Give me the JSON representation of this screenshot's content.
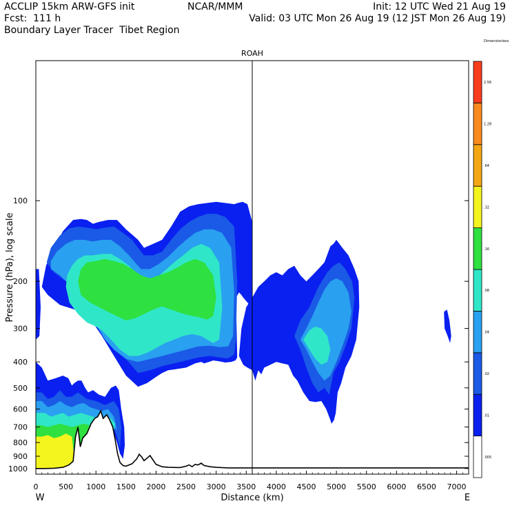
{
  "header": {
    "line1_left": "ACCLIP 15km ARW-GFS init",
    "line1_center": "NCAR/MMM",
    "line1_right": "Init: 12 UTC Wed 21 Aug 19",
    "line2_left": "Fcst:  111 h",
    "line2_right": "Valid: 03 UTC Mon 26 Aug 19 (12 JST Mon 26 Aug 19)",
    "line3_left": "Boundary Layer Tracer  Tibet Region"
  },
  "chart_data": {
    "type": "heatmap",
    "title": "",
    "xlabel": "Distance (km)",
    "ylabel": "Pressure (hPa), log scale",
    "x_ticks": [
      0,
      500,
      1000,
      1500,
      2000,
      2500,
      3000,
      3500,
      4000,
      4500,
      5000,
      5500,
      6000,
      6500,
      7000
    ],
    "y_ticks": [
      100,
      200,
      300,
      400,
      500,
      600,
      700,
      800,
      900,
      1000
    ],
    "xlim": [
      0,
      7200
    ],
    "ylim": [
      1050,
      30
    ],
    "y_scale": "log",
    "x_end_labels": {
      "left": "W",
      "right": "E"
    },
    "marker": {
      "label": "ROAH",
      "x": 3600
    },
    "colorbar": {
      "levels": [
        ".005",
        ".01",
        ".02",
        ".04",
        ".08",
        ".16",
        ".32",
        ".64",
        "1.28",
        "2.56",
        "Dimensionless"
      ],
      "colors": [
        "#ffffff",
        "#0a20f0",
        "#1a5ae6",
        "#2aa0f0",
        "#30e6c8",
        "#2ee040",
        "#f4f41e",
        "#f4a614",
        "#fa8a1e",
        "#fa3c1e"
      ]
    },
    "terrain_profile": {
      "x": [
        0,
        150,
        300,
        450,
        550,
        620,
        660,
        700,
        740,
        780,
        850,
        920,
        980,
        1030,
        1080,
        1120,
        1180,
        1230,
        1280,
        1320,
        1360,
        1400,
        1450,
        1500,
        1600,
        1680,
        1720,
        1760,
        1800,
        1850,
        1900,
        1950,
        2000,
        2100,
        2200,
        2400,
        2500,
        2550,
        2600,
        2650,
        2700,
        2750,
        2800,
        2900,
        3000,
        3200,
        3500,
        4000,
        5000,
        6000,
        7200
      ],
      "p": [
        1000,
        1000,
        998,
        990,
        970,
        940,
        760,
        700,
        830,
        770,
        740,
        680,
        650,
        640,
        610,
        650,
        630,
        660,
        700,
        780,
        880,
        950,
        975,
        980,
        960,
        920,
        885,
        905,
        935,
        915,
        895,
        930,
        965,
        985,
        990,
        992,
        980,
        970,
        985,
        965,
        970,
        955,
        975,
        985,
        990,
        995,
        995,
        995,
        995,
        995,
        995
      ]
    },
    "tracer_regions": [
      {
        "level": 1,
        "x": [
          100,
          200,
          400,
          650,
          900,
          1100,
          1300,
          1500,
          1700,
          1850,
          2000,
          2100,
          2200,
          2350,
          2500,
          2650,
          2750,
          2800,
          2880,
          2950,
          3050,
          3150,
          3250,
          3320,
          3350,
          3330,
          3380,
          3420,
          3450,
          3520,
          3580,
          3600,
          3600,
          3520,
          3440,
          3360,
          3300,
          3150,
          3000,
          2850,
          2700,
          2550,
          2400,
          2250,
          2100,
          1950,
          1800,
          1700,
          1620,
          1500,
          1350,
          1200,
          1050,
          950,
          850,
          750,
          620,
          450,
          300,
          170,
          100
        ],
        "p": [
          210,
          225,
          245,
          255,
          275,
          320,
          380,
          450,
          495,
          480,
          455,
          440,
          430,
          425,
          420,
          405,
          400,
          405,
          400,
          395,
          398,
          402,
          400,
          395,
          385,
          230,
          220,
          225,
          230,
          240,
          250,
          300,
          120,
          103,
          101,
          102,
          103,
          102,
          101,
          102,
          103,
          105,
          110,
          125,
          140,
          145,
          150,
          140,
          135,
          128,
          118,
          118,
          120,
          122,
          118,
          117,
          118,
          130,
          150,
          175,
          210
        ]
      },
      {
        "level": 1,
        "x": [
          3380,
          3450,
          3520,
          3600,
          3650,
          3700,
          3750,
          3800,
          3900,
          4000,
          4100,
          4200,
          4280,
          4350,
          4450,
          4550,
          4650,
          4750,
          4830,
          4890,
          4920,
          4960,
          4990,
          5020,
          5080,
          5150,
          5250,
          5330,
          5380,
          5370,
          5300,
          5200,
          5100,
          5000,
          4950,
          4900,
          4800,
          4700,
          4600,
          4500,
          4400,
          4300,
          4200,
          4100,
          4000,
          3900,
          3800,
          3700,
          3600,
          3500,
          3420,
          3380
        ],
        "p": [
          380,
          410,
          420,
          430,
          470,
          430,
          445,
          420,
          410,
          400,
          405,
          410,
          450,
          470,
          520,
          560,
          565,
          560,
          600,
          650,
          680,
          660,
          620,
          520,
          480,
          420,
          380,
          330,
          250,
          200,
          180,
          160,
          150,
          140,
          145,
          148,
          170,
          180,
          190,
          200,
          190,
          175,
          180,
          190,
          185,
          190,
          200,
          210,
          230,
          250,
          300,
          380
        ]
      },
      {
        "level": 1,
        "x": [
          6790,
          6840,
          6880,
          6910,
          6890,
          6850,
          6800,
          6790
        ],
        "p": [
          260,
          255,
          280,
          320,
          340,
          320,
          300,
          260
        ]
      },
      {
        "level": 1,
        "x": [
          0,
          50,
          80,
          60,
          0
        ],
        "p": [
          180,
          180,
          250,
          320,
          330
        ]
      },
      {
        "level": 1,
        "x": [
          0,
          80,
          150,
          250,
          350,
          450,
          500,
          600,
          700,
          800,
          900,
          950,
          1050,
          1100,
          1150,
          1200,
          1250,
          1300,
          1350,
          1400,
          1450,
          1480,
          1470,
          1420,
          1380,
          1330,
          1250,
          1150,
          1050,
          950,
          870,
          820,
          760,
          700,
          640,
          600,
          540,
          450,
          330,
          200,
          100,
          0
        ],
        "p": [
          1000,
          1000,
          998,
          995,
          990,
          985,
          978,
          965,
          940,
          900,
          820,
          760,
          700,
          670,
          660,
          665,
          690,
          740,
          800,
          880,
          920,
          820,
          700,
          600,
          510,
          490,
          500,
          540,
          530,
          510,
          520,
          500,
          470,
          470,
          480,
          490,
          460,
          450,
          460,
          470,
          420,
          400
        ]
      },
      {
        "level": 2,
        "x": [
          180,
          300,
          500,
          700,
          900,
          1100,
          1300,
          1500,
          1700,
          1900,
          2100,
          2300,
          2500,
          2700,
          2900,
          3050,
          3200,
          3300,
          3330,
          3350,
          3300,
          3150,
          3000,
          2850,
          2700,
          2550,
          2400,
          2250,
          2100,
          1950,
          1800,
          1700,
          1600,
          1450,
          1300,
          1150,
          1000,
          850,
          700,
          550,
          400,
          250,
          180
        ],
        "p": [
          170,
          185,
          200,
          215,
          240,
          275,
          330,
          390,
          440,
          430,
          415,
          405,
          395,
          385,
          380,
          385,
          388,
          375,
          330,
          200,
          125,
          115,
          112,
          112,
          115,
          120,
          128,
          140,
          155,
          160,
          160,
          150,
          140,
          132,
          125,
          126,
          128,
          126,
          125,
          127,
          135,
          150,
          170
        ]
      },
      {
        "level": 2,
        "x": [
          4300,
          4400,
          4500,
          4600,
          4700,
          4800,
          4880,
          4950,
          5050,
          5150,
          5250,
          5300,
          5260,
          5150,
          5050,
          4950,
          4850,
          4700,
          4550,
          4400,
          4300
        ],
        "p": [
          320,
          360,
          420,
          480,
          520,
          500,
          530,
          440,
          400,
          350,
          300,
          230,
          200,
          180,
          170,
          175,
          185,
          210,
          250,
          280,
          320
        ]
      },
      {
        "level": 2,
        "x": [
          0,
          200,
          400,
          500,
          600,
          700,
          800,
          900,
          1000,
          1100,
          1200,
          1300,
          1350,
          1400,
          1420,
          1380,
          1300,
          1150,
          1000,
          850,
          700,
          600,
          500,
          400,
          300,
          200,
          100,
          0
        ],
        "p": [
          990,
          990,
          985,
          975,
          950,
          920,
          870,
          800,
          740,
          700,
          690,
          710,
          760,
          840,
          700,
          600,
          560,
          580,
          560,
          550,
          520,
          540,
          540,
          510,
          540,
          550,
          520,
          520
        ]
      },
      {
        "level": 3,
        "x": [
          250,
          400,
          550,
          700,
          850,
          1000,
          1150,
          1300,
          1500,
          1700,
          1900,
          2100,
          2300,
          2500,
          2700,
          2900,
          3050,
          3200,
          3280,
          3300,
          3250,
          3100,
          2950,
          2800,
          2650,
          2500,
          2350,
          2200,
          2050,
          1900,
          1750,
          1650,
          1550,
          1400,
          1250,
          1100,
          950,
          800,
          650,
          500,
          350,
          250
        ],
        "p": [
          180,
          190,
          205,
          225,
          255,
          290,
          330,
          360,
          390,
          400,
          390,
          380,
          370,
          360,
          350,
          348,
          352,
          350,
          320,
          220,
          150,
          132,
          128,
          128,
          132,
          140,
          150,
          162,
          172,
          180,
          180,
          170,
          160,
          148,
          140,
          140,
          142,
          140,
          140,
          145,
          155,
          168,
          180
        ]
      },
      {
        "level": 3,
        "x": [
          4400,
          4500,
          4600,
          4700,
          4800,
          4900,
          5000,
          5100,
          5200,
          5250,
          5200,
          5100,
          5000,
          4900,
          4800,
          4700,
          4600,
          4500,
          4400
        ],
        "p": [
          330,
          360,
          400,
          440,
          470,
          450,
          400,
          350,
          300,
          260,
          220,
          200,
          195,
          200,
          215,
          240,
          270,
          300,
          330
        ]
      },
      {
        "level": 3,
        "x": [
          0,
          100,
          200,
          300,
          400,
          500,
          600,
          700,
          800,
          900,
          1000,
          1100,
          1200,
          1300,
          1350,
          1300,
          1200,
          1100,
          1000,
          900,
          800,
          700,
          600,
          500,
          400,
          300,
          200,
          100,
          0
        ],
        "p": [
          980,
          980,
          975,
          970,
          960,
          945,
          920,
          880,
          820,
          760,
          710,
          700,
          690,
          700,
          720,
          640,
          600,
          610,
          600,
          590,
          570,
          575,
          590,
          580,
          560,
          580,
          590,
          560,
          560
        ]
      },
      {
        "level": 4,
        "x": [
          1100,
          1250,
          1400,
          1550,
          1700,
          1850,
          2000,
          2150,
          2300,
          2450,
          2600,
          2750,
          2850,
          2950,
          3050,
          3100,
          3050,
          2900,
          2750,
          2600,
          2450,
          2300,
          2150,
          2000,
          1850,
          1700,
          1550,
          1400,
          1250,
          1100,
          950,
          820,
          700,
          600,
          520,
          500,
          560,
          700,
          850,
          1000,
          1100
        ],
        "p": [
          305,
          330,
          360,
          380,
          380,
          370,
          355,
          340,
          330,
          320,
          315,
          320,
          330,
          340,
          330,
          250,
          170,
          150,
          145,
          150,
          160,
          170,
          182,
          195,
          200,
          190,
          175,
          165,
          158,
          158,
          160,
          160,
          165,
          175,
          190,
          210,
          240,
          265,
          285,
          295,
          305
        ]
      },
      {
        "level": 4,
        "x": [
          4450,
          4550,
          4650,
          4750,
          4850,
          4900,
          4850,
          4750,
          4650,
          4550,
          4450
        ],
        "p": [
          330,
          360,
          390,
          410,
          400,
          360,
          320,
          300,
          295,
          305,
          330
        ]
      },
      {
        "level": 4,
        "x": [
          0,
          150,
          300,
          450,
          600,
          700,
          800,
          900,
          1000,
          1100,
          1200,
          1300,
          1320,
          1250,
          1150,
          1050,
          950,
          850,
          750,
          650,
          550,
          450,
          350,
          250,
          150,
          0
        ],
        "p": [
          960,
          960,
          950,
          930,
          900,
          870,
          830,
          780,
          740,
          720,
          710,
          720,
          680,
          650,
          640,
          650,
          640,
          630,
          620,
          630,
          640,
          620,
          630,
          640,
          620,
          620
        ]
      },
      {
        "level": 5,
        "x": [
          1200,
          1350,
          1500,
          1650,
          1800,
          1950,
          2100,
          2250,
          2400,
          2550,
          2700,
          2850,
          2950,
          3000,
          2950,
          2800,
          2650,
          2500,
          2350,
          2200,
          2050,
          1900,
          1750,
          1600,
          1450,
          1300,
          1150,
          1000,
          850,
          750,
          700,
          750,
          900,
          1050,
          1200
        ],
        "p": [
          260,
          270,
          280,
          275,
          265,
          255,
          248,
          255,
          262,
          268,
          272,
          278,
          270,
          230,
          190,
          170,
          165,
          170,
          178,
          185,
          190,
          195,
          190,
          180,
          172,
          168,
          165,
          168,
          170,
          180,
          200,
          225,
          240,
          250,
          260
        ]
      },
      {
        "level": 5,
        "x": [
          0,
          100,
          200,
          300,
          400,
          500,
          600,
          700,
          800,
          900,
          1000,
          1100,
          1200,
          1250,
          1200,
          1100,
          1000,
          900,
          800,
          700,
          600,
          500,
          400,
          300,
          200,
          100,
          0
        ],
        "p": [
          910,
          910,
          905,
          900,
          890,
          870,
          845,
          815,
          785,
          760,
          745,
          740,
          745,
          720,
          700,
          690,
          700,
          690,
          680,
          690,
          700,
          690,
          680,
          690,
          700,
          690,
          690
        ]
      },
      {
        "level": 6,
        "x": [
          0,
          100,
          200,
          300,
          400,
          500,
          600,
          650,
          600,
          500,
          400,
          300,
          200,
          100,
          0
        ],
        "p": [
          1000,
          1000,
          998,
          995,
          990,
          985,
          975,
          960,
          760,
          740,
          760,
          770,
          750,
          760,
          760
        ]
      }
    ]
  }
}
